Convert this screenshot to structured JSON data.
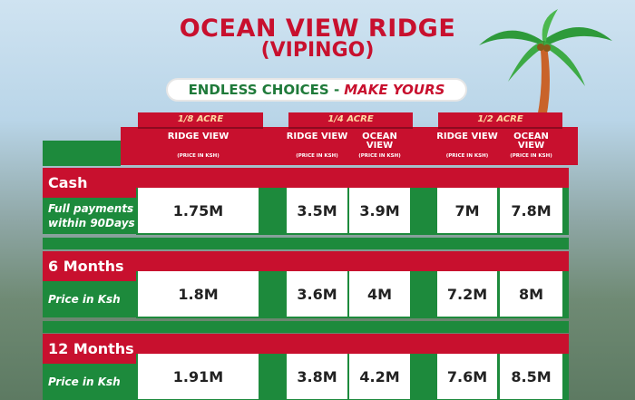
{
  "header": {
    "title": "OCEAN VIEW RIDGE",
    "subtitle": "(VIPINGO)",
    "tagline": {
      "main": "ENDLESS CHOICES -",
      "emphasis": "MAKE YOURS"
    }
  },
  "table": {
    "groups": [
      {
        "label": "1/8 ACRE",
        "columns": [
          {
            "name": "RIDGE VIEW",
            "note": "(PRICE IN KSH)"
          }
        ]
      },
      {
        "label": "1/4 ACRE",
        "columns": [
          {
            "name": "RIDGE VIEW",
            "note": "(PRICE IN KSH)"
          },
          {
            "name": "OCEAN VIEW",
            "note": "(PRICE IN KSH)"
          }
        ]
      },
      {
        "label": "1/2 ACRE",
        "columns": [
          {
            "name": "RIDGE VIEW",
            "note": "(PRICE IN KSH)"
          },
          {
            "name": "OCEAN VIEW",
            "note": "(PRICE IN KSH)"
          }
        ]
      }
    ],
    "rows": [
      {
        "label": "Cash",
        "sublabel": "Full payments within 90Days",
        "values": [
          "1.75M",
          "3.5M",
          "3.9M",
          "7M",
          "7.8M"
        ]
      },
      {
        "label": "6 Months",
        "sublabel": "Price in Ksh",
        "values": [
          "1.8M",
          "3.6M",
          "4M",
          "7.2M",
          "8M"
        ]
      },
      {
        "label": "12 Months",
        "sublabel": "Price in Ksh",
        "values": [
          "1.91M",
          "3.8M",
          "4.2M",
          "7.6M",
          "8.5M"
        ]
      }
    ]
  }
}
